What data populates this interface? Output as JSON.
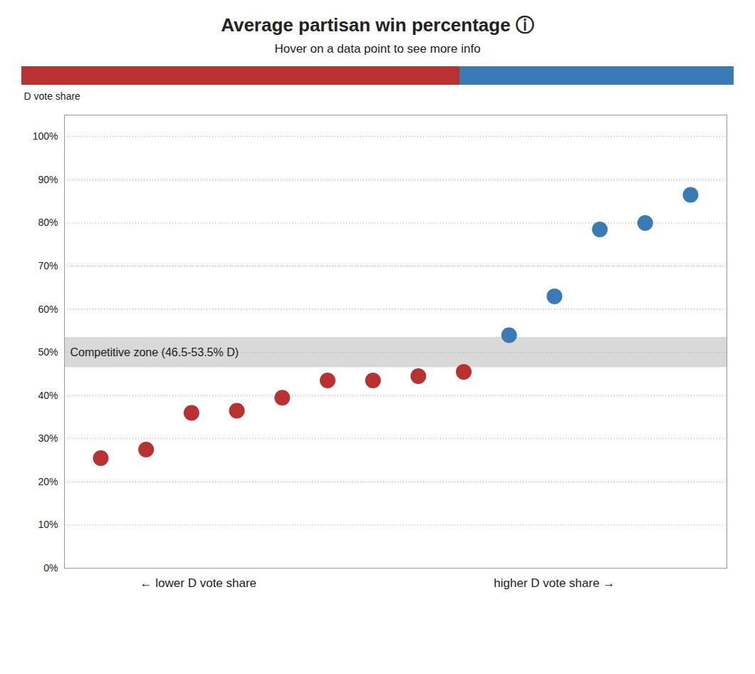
{
  "chart_data": {
    "type": "scatter",
    "title": "Average partisan win percentage ⓘ",
    "subtitle": "Hover on a data point to see more info",
    "ylabel": "D vote share",
    "series": [
      {
        "color": "#b83232",
        "x": [
          1,
          2,
          3,
          4,
          5,
          6,
          7,
          8,
          9
        ],
        "values": [
          25.5,
          27.5,
          36.0,
          36.5,
          39.5,
          43.5,
          43.5,
          44.5,
          45.5
        ]
      },
      {
        "color": "#3a7ab5",
        "x": [
          10,
          11,
          12,
          13,
          14
        ],
        "values": [
          54.0,
          63.0,
          78.5,
          80.0,
          86.5
        ]
      }
    ],
    "xlim": [
      0.2,
      14.8
    ],
    "ylim": [
      0,
      105
    ],
    "yticks": [
      {
        "value": 0,
        "label": "0%"
      },
      {
        "value": 10,
        "label": "10%"
      },
      {
        "value": 20,
        "label": "20%"
      },
      {
        "value": 30,
        "label": "30%"
      },
      {
        "value": 40,
        "label": "40%"
      },
      {
        "value": 50,
        "label": "50%"
      },
      {
        "value": 60,
        "label": "60%"
      },
      {
        "value": 70,
        "label": "70%"
      },
      {
        "value": 80,
        "label": "80%"
      },
      {
        "value": 90,
        "label": "90%"
      },
      {
        "value": 100,
        "label": "100%"
      }
    ],
    "grid": true,
    "legend": false,
    "tick_labels": "y",
    "bands": [
      {
        "lower": 46.5,
        "upper": 53.5,
        "label": "Competitive zone (46.5-53.5% D)",
        "color": "#d9d9d9"
      }
    ],
    "color_bar": {
      "split": 0.615,
      "colors": [
        "#b83232",
        "#3a7ab5"
      ]
    },
    "annotations": [
      {
        "text": "← lower D vote share"
      },
      {
        "text": "higher D vote share →"
      }
    ]
  }
}
